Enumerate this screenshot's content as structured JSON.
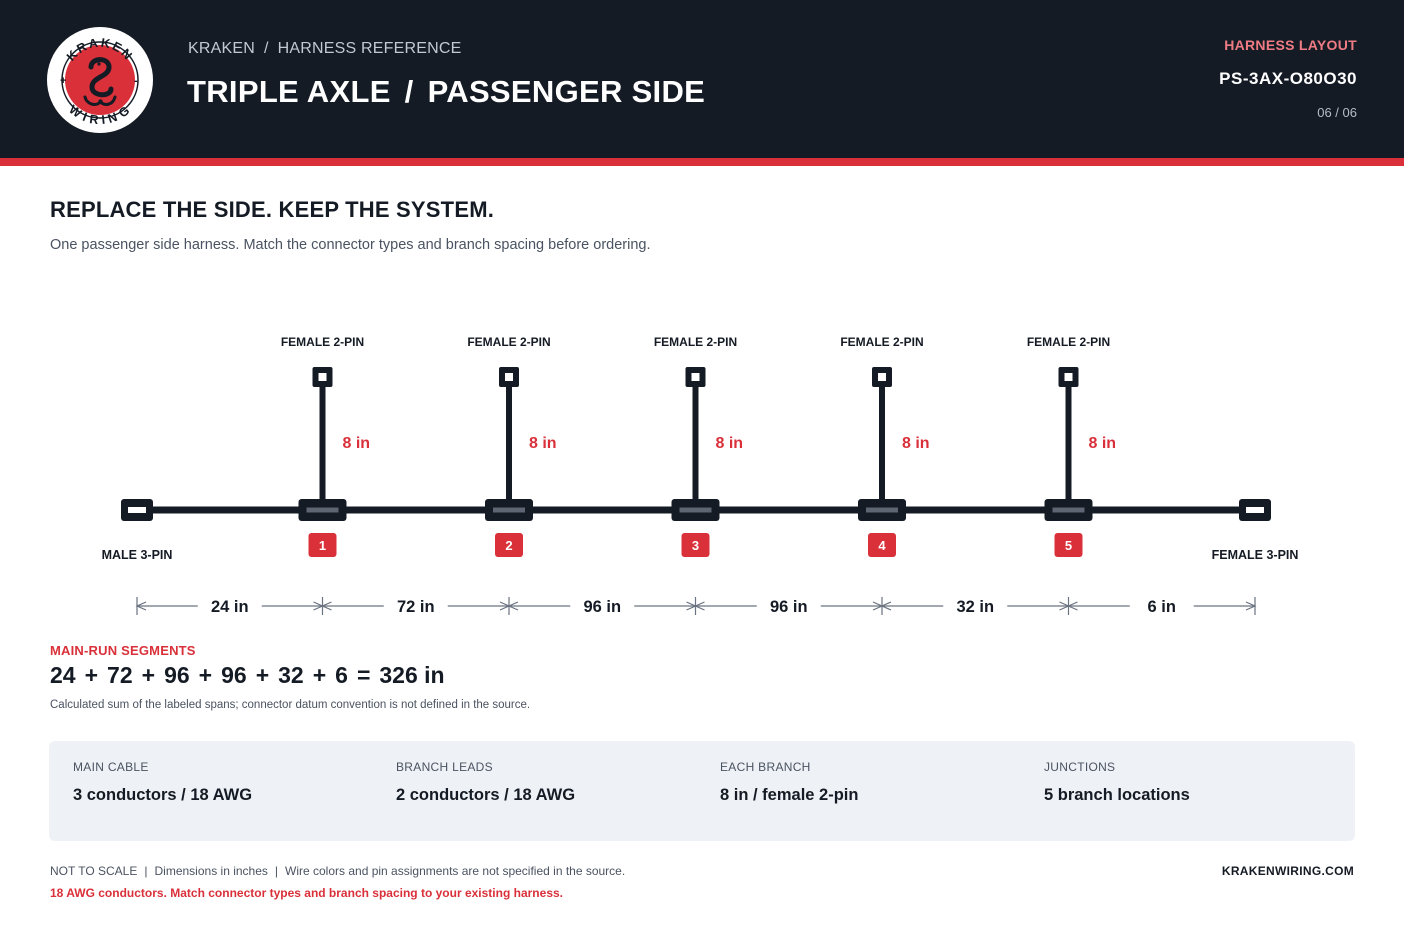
{
  "header": {
    "logo": {
      "top_text": "KRAKEN",
      "bottom_text": "WIRING",
      "icon": "kraken-emblem-icon"
    },
    "breadcrumb": [
      "KRAKEN",
      "HARNESS REFERENCE"
    ],
    "breadcrumb_separator": "/",
    "title_left": "TRIPLE AXLE",
    "title_separator": "/",
    "title_right": "PASSENGER SIDE",
    "kicker": "HARNESS LAYOUT",
    "part_code": "PS-3AX-O80O30",
    "page": "06 / 06"
  },
  "intro": {
    "headline": "REPLACE THE SIDE. KEEP THE SYSTEM.",
    "subhead": "One passenger side harness. Match the connector types and branch spacing before ordering."
  },
  "diagram": {
    "start_connector": "MALE 3-PIN",
    "end_connector": "FEMALE 3-PIN",
    "branches": [
      {
        "number": "1",
        "connector": "FEMALE 2-PIN",
        "length": "8 in"
      },
      {
        "number": "2",
        "connector": "FEMALE 2-PIN",
        "length": "8 in"
      },
      {
        "number": "3",
        "connector": "FEMALE 2-PIN",
        "length": "8 in"
      },
      {
        "number": "4",
        "connector": "FEMALE 2-PIN",
        "length": "8 in"
      },
      {
        "number": "5",
        "connector": "FEMALE 2-PIN",
        "length": "8 in"
      }
    ],
    "segments": [
      {
        "value": 24,
        "label": "24 in"
      },
      {
        "value": 72,
        "label": "72 in"
      },
      {
        "value": 96,
        "label": "96 in"
      },
      {
        "value": 96,
        "label": "96 in"
      },
      {
        "value": 32,
        "label": "32 in"
      },
      {
        "value": 6,
        "label": "6 in"
      }
    ],
    "colors": {
      "cable": "#151b24",
      "accent": "#d9303a",
      "dimension": "#6b7380"
    }
  },
  "summary": {
    "label": "MAIN-RUN SEGMENTS",
    "terms": [
      "24",
      "+",
      "72",
      "+",
      "96",
      "+",
      "96",
      "+",
      "32",
      "+",
      "6",
      "=",
      "326 in"
    ],
    "note": "Calculated sum of the labeled spans; connector datum convention is not defined in the source."
  },
  "specs": [
    {
      "label": "MAIN CABLE",
      "value": "3 conductors / 18 AWG"
    },
    {
      "label": "BRANCH LEADS",
      "value": "2 conductors / 18 AWG"
    },
    {
      "label": "EACH BRANCH",
      "value": "8 in / female 2-pin"
    },
    {
      "label": "JUNCTIONS",
      "value": "5 branch locations"
    }
  ],
  "footer": {
    "notes": [
      "NOT TO SCALE",
      "Dimensions in inches",
      "Wire colors and pin assignments are not specified in the source."
    ],
    "separator": "|",
    "warning": "18 AWG conductors. Match connector types and branch spacing to your existing harness.",
    "site": "KRAKENWIRING.COM"
  }
}
